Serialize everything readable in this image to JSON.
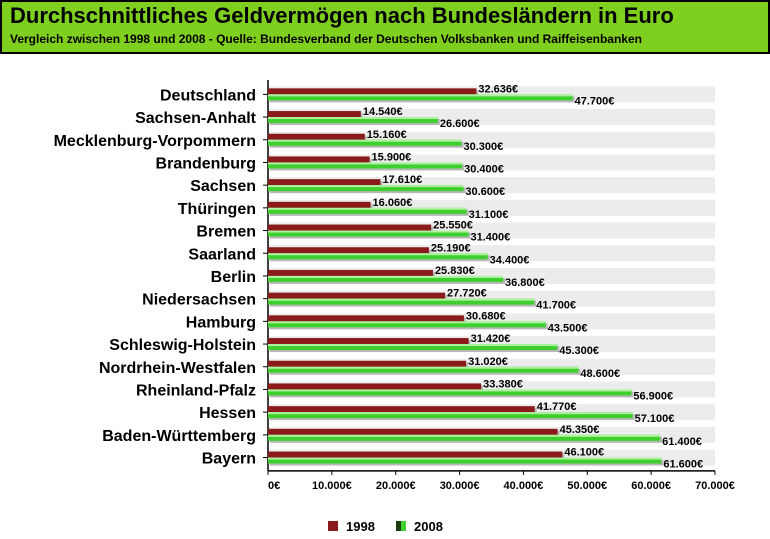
{
  "chart_data": {
    "type": "bar",
    "orientation": "horizontal",
    "title": "Durchschnittliches Geldvermögen nach Bundesländern in Euro",
    "subtitle": "Vergleich zwischen 1998 und 2008 - Quelle: Bundesverband der Deutschen Volksbanken und Raiffeisenbanken",
    "categories": [
      "Deutschland",
      "Sachsen-Anhalt",
      "Mecklenburg-Vorpommern",
      "Brandenburg",
      "Sachsen",
      "Thüringen",
      "Bremen",
      "Saarland",
      "Berlin",
      "Niedersachsen",
      "Hamburg",
      "Schleswig-Holstein",
      "Nordrhein-Westfalen",
      "Rheinland-Pfalz",
      "Hessen",
      "Baden-Württemberg",
      "Bayern"
    ],
    "series": [
      {
        "name": "1998",
        "color": "#8b1a1a",
        "values": [
          32636,
          14540,
          15160,
          15900,
          17610,
          16060,
          25550,
          25190,
          25830,
          27720,
          30680,
          31420,
          31020,
          33380,
          41770,
          45350,
          46100
        ],
        "labels": [
          "32.636€",
          "14.540€",
          "15.160€",
          "15.900€",
          "17.610€",
          "16.060€",
          "25.550€",
          "25.190€",
          "25.830€",
          "27.720€",
          "30.680€",
          "31.420€",
          "31.020€",
          "33.380€",
          "41.770€",
          "45.350€",
          "46.100€"
        ]
      },
      {
        "name": "2008",
        "color": "#3ecf2e",
        "values": [
          47700,
          26600,
          30300,
          30400,
          30600,
          31100,
          31400,
          34400,
          36800,
          41700,
          43500,
          45300,
          48600,
          56900,
          57100,
          61400,
          61600
        ],
        "labels": [
          "47.700€",
          "26.600€",
          "30.300€",
          "30.400€",
          "30.600€",
          "31.100€",
          "31.400€",
          "34.400€",
          "36.800€",
          "41.700€",
          "43.500€",
          "45.300€",
          "48.600€",
          "56.900€",
          "57.100€",
          "61.400€",
          "61.600€"
        ]
      }
    ],
    "xlim": [
      0,
      70000
    ],
    "xticks": [
      0,
      10000,
      20000,
      30000,
      40000,
      50000,
      60000,
      70000
    ],
    "xtick_labels": [
      "0€",
      "10.000€",
      "20.000€",
      "30.000€",
      "40.000€",
      "50.000€",
      "60.000€",
      "70.000€"
    ],
    "legend": "bottom-center",
    "grid": false
  }
}
